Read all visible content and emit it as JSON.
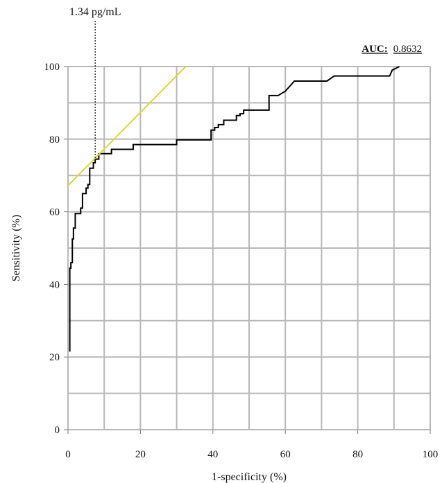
{
  "chart_data": {
    "type": "line",
    "xlabel": "1-specificity (%)",
    "ylabel": "Sensitivity (%)",
    "xlim": [
      0,
      100
    ],
    "ylim": [
      0,
      100
    ],
    "x_major_ticks": [
      0,
      20,
      40,
      60,
      80,
      100
    ],
    "y_major_ticks": [
      0,
      20,
      40,
      60,
      80,
      100
    ],
    "grid_step": 10,
    "grid": true,
    "annotation": {
      "label": "1.34 pg/mL",
      "x": 7.5
    },
    "auc": {
      "label": "AUC:",
      "value": "0.8632"
    },
    "colors": {
      "roc": "#000000",
      "tangent": "#e2d23b",
      "grid": "#b8b8b8"
    },
    "series": [
      {
        "points": [
          [
            0.5,
            21.5
          ],
          [
            0.5,
            44.5
          ],
          [
            0.8,
            44.5
          ],
          [
            0.8,
            46
          ],
          [
            1.2,
            46
          ],
          [
            1.2,
            52.5
          ],
          [
            1.5,
            52.5
          ],
          [
            1.5,
            55.5
          ],
          [
            2,
            55.5
          ],
          [
            2,
            59.5
          ],
          [
            3.5,
            59.5
          ],
          [
            3.5,
            61
          ],
          [
            4,
            61
          ],
          [
            4,
            65
          ],
          [
            5,
            65
          ],
          [
            5,
            66.5
          ],
          [
            5.5,
            66.5
          ],
          [
            5.5,
            67.5
          ],
          [
            6,
            67.5
          ],
          [
            6,
            72
          ],
          [
            7,
            72
          ],
          [
            7,
            73.5
          ],
          [
            7.5,
            73.5
          ],
          [
            7.5,
            74.5
          ],
          [
            8.5,
            74.5
          ],
          [
            8.5,
            76
          ],
          [
            12,
            76
          ],
          [
            12,
            77.2
          ],
          [
            18,
            77.2
          ],
          [
            18,
            78.5
          ],
          [
            30,
            78.5
          ],
          [
            30,
            79.8
          ],
          [
            39.5,
            79.8
          ],
          [
            39.5,
            82.5
          ],
          [
            40.5,
            82.5
          ],
          [
            40.5,
            83.2
          ],
          [
            41.5,
            83.2
          ],
          [
            41.5,
            84
          ],
          [
            43,
            84
          ],
          [
            43,
            85.2
          ],
          [
            46.5,
            85.2
          ],
          [
            46.5,
            86.5
          ],
          [
            47.5,
            86.5
          ],
          [
            47.5,
            87
          ],
          [
            48.5,
            87
          ],
          [
            48.5,
            88
          ],
          [
            55.5,
            88
          ],
          [
            55.5,
            92
          ],
          [
            58,
            92
          ],
          [
            60,
            93.2
          ],
          [
            62.5,
            96
          ],
          [
            71.5,
            96
          ],
          [
            73.5,
            97.4
          ],
          [
            88.8,
            97.4
          ],
          [
            89.5,
            99
          ],
          [
            91.5,
            100
          ]
        ]
      },
      {
        "points": [
          [
            0,
            67.2
          ],
          [
            32.5,
            100
          ]
        ]
      }
    ]
  }
}
